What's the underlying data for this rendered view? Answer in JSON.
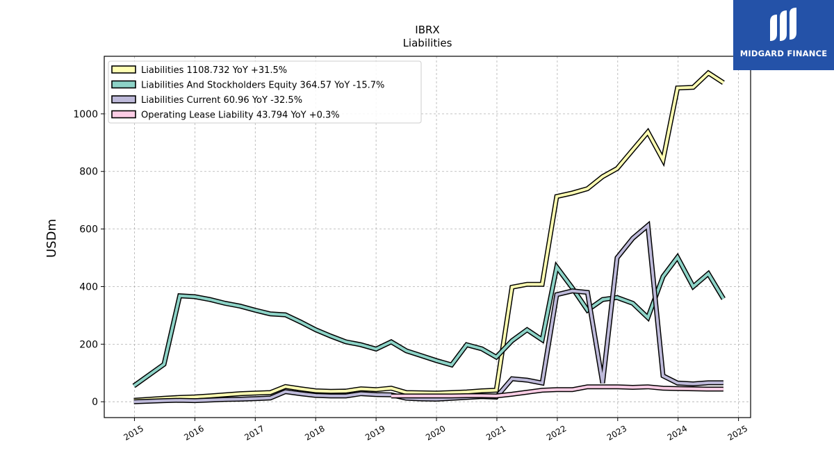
{
  "chart_data": {
    "type": "line",
    "title": "IBRX",
    "subtitle": "Liabilities",
    "xlabel": "",
    "ylabel": "USDm",
    "xlim": [
      2014.5,
      2025.2
    ],
    "ylim": [
      -55,
      1200
    ],
    "x_ticks": [
      2015,
      2016,
      2017,
      2018,
      2019,
      2020,
      2021,
      2022,
      2023,
      2024,
      2025
    ],
    "x_tick_labels": [
      "2015",
      "2016",
      "2017",
      "2018",
      "2019",
      "2020",
      "2021",
      "2022",
      "2023",
      "2024",
      "2025"
    ],
    "y_ticks": [
      0,
      200,
      400,
      600,
      800,
      1000
    ],
    "y_tick_labels": [
      "0",
      "200",
      "400",
      "600",
      "800",
      "1000"
    ],
    "grid": true,
    "legend_position": "top-left",
    "series": [
      {
        "name": "Liabilities",
        "legend_label": "Liabilities  1108.732 YoY +31.5%",
        "color": "#ffffb3",
        "points": [
          [
            2014.99,
            5
          ],
          [
            2015.49,
            12
          ],
          [
            2015.75,
            15
          ],
          [
            2016.0,
            17
          ],
          [
            2016.25,
            20
          ],
          [
            2016.5,
            24
          ],
          [
            2016.75,
            28
          ],
          [
            2017.0,
            30
          ],
          [
            2017.25,
            32
          ],
          [
            2017.5,
            53
          ],
          [
            2017.75,
            45
          ],
          [
            2018.0,
            38
          ],
          [
            2018.25,
            36
          ],
          [
            2018.5,
            37
          ],
          [
            2018.75,
            45
          ],
          [
            2019.0,
            42
          ],
          [
            2019.25,
            47
          ],
          [
            2019.5,
            32
          ],
          [
            2019.75,
            31
          ],
          [
            2020.0,
            30
          ],
          [
            2020.25,
            32
          ],
          [
            2020.5,
            34
          ],
          [
            2020.75,
            38
          ],
          [
            2020.99,
            40
          ],
          [
            2021.25,
            398
          ],
          [
            2021.5,
            408
          ],
          [
            2021.75,
            408
          ],
          [
            2021.99,
            713
          ],
          [
            2022.25,
            725
          ],
          [
            2022.5,
            740
          ],
          [
            2022.75,
            782
          ],
          [
            2022.99,
            810
          ],
          [
            2023.25,
            875
          ],
          [
            2023.5,
            937
          ],
          [
            2023.75,
            840
          ],
          [
            2023.99,
            1090
          ],
          [
            2024.25,
            1092
          ],
          [
            2024.5,
            1142
          ],
          [
            2024.75,
            1108
          ]
        ]
      },
      {
        "name": "Liabilities And Stockholders Equity",
        "legend_label": "Liabilities And Stockholders Equity  364.57 YoY -15.7%",
        "color": "#8dd3c7",
        "points": [
          [
            2014.99,
            55
          ],
          [
            2015.49,
            130
          ],
          [
            2015.75,
            368
          ],
          [
            2016.0,
            365
          ],
          [
            2016.25,
            355
          ],
          [
            2016.5,
            342
          ],
          [
            2016.75,
            332
          ],
          [
            2017.0,
            318
          ],
          [
            2017.25,
            305
          ],
          [
            2017.5,
            302
          ],
          [
            2017.75,
            277
          ],
          [
            2018.0,
            250
          ],
          [
            2018.25,
            228
          ],
          [
            2018.5,
            208
          ],
          [
            2018.75,
            198
          ],
          [
            2019.0,
            183
          ],
          [
            2019.25,
            208
          ],
          [
            2019.5,
            177
          ],
          [
            2019.75,
            160
          ],
          [
            2020.0,
            143
          ],
          [
            2020.25,
            128
          ],
          [
            2020.5,
            198
          ],
          [
            2020.75,
            184
          ],
          [
            2020.99,
            155
          ],
          [
            2021.25,
            212
          ],
          [
            2021.5,
            250
          ],
          [
            2021.75,
            215
          ],
          [
            2021.99,
            468
          ],
          [
            2022.25,
            395
          ],
          [
            2022.5,
            318
          ],
          [
            2022.75,
            355
          ],
          [
            2022.99,
            362
          ],
          [
            2023.25,
            342
          ],
          [
            2023.5,
            292
          ],
          [
            2023.75,
            435
          ],
          [
            2023.99,
            502
          ],
          [
            2024.25,
            400
          ],
          [
            2024.5,
            445
          ],
          [
            2024.75,
            358
          ]
        ]
      },
      {
        "name": "Liabilities Current",
        "legend_label": "Liabilities Current  60.96 YoY -32.5%",
        "color": "#bebada",
        "points": [
          [
            2014.99,
            0
          ],
          [
            2015.49,
            4
          ],
          [
            2015.75,
            5
          ],
          [
            2016.0,
            4
          ],
          [
            2016.25,
            6
          ],
          [
            2016.5,
            8
          ],
          [
            2016.75,
            9
          ],
          [
            2017.0,
            11
          ],
          [
            2017.25,
            13
          ],
          [
            2017.5,
            35
          ],
          [
            2017.75,
            28
          ],
          [
            2018.0,
            22
          ],
          [
            2018.25,
            20
          ],
          [
            2018.5,
            20
          ],
          [
            2018.75,
            28
          ],
          [
            2019.0,
            25
          ],
          [
            2019.25,
            24
          ],
          [
            2019.5,
            12
          ],
          [
            2019.75,
            10
          ],
          [
            2020.0,
            9
          ],
          [
            2020.25,
            12
          ],
          [
            2020.5,
            15
          ],
          [
            2020.75,
            18
          ],
          [
            2020.99,
            16
          ],
          [
            2021.25,
            80
          ],
          [
            2021.5,
            75
          ],
          [
            2021.75,
            65
          ],
          [
            2021.99,
            372
          ],
          [
            2022.25,
            385
          ],
          [
            2022.5,
            380
          ],
          [
            2022.75,
            65
          ],
          [
            2022.99,
            500
          ],
          [
            2023.25,
            568
          ],
          [
            2023.5,
            612
          ],
          [
            2023.75,
            90
          ],
          [
            2023.99,
            65
          ],
          [
            2024.25,
            62
          ],
          [
            2024.5,
            66
          ],
          [
            2024.75,
            66
          ]
        ]
      },
      {
        "name": "Operating Lease Liability",
        "legend_label": "Operating Lease Liability  43.794 YoY +0.3%",
        "color": "#fccde5",
        "points": [
          [
            2019.25,
            20
          ],
          [
            2019.5,
            20
          ],
          [
            2019.75,
            20
          ],
          [
            2020.0,
            20
          ],
          [
            2020.25,
            20
          ],
          [
            2020.5,
            21
          ],
          [
            2020.75,
            21
          ],
          [
            2020.99,
            20
          ],
          [
            2021.25,
            26
          ],
          [
            2021.5,
            33
          ],
          [
            2021.75,
            40
          ],
          [
            2021.99,
            42
          ],
          [
            2022.25,
            42
          ],
          [
            2022.5,
            52
          ],
          [
            2022.75,
            52
          ],
          [
            2022.99,
            52
          ],
          [
            2023.25,
            50
          ],
          [
            2023.5,
            52
          ],
          [
            2023.75,
            47
          ],
          [
            2023.99,
            46
          ],
          [
            2024.25,
            45
          ],
          [
            2024.5,
            44
          ],
          [
            2024.75,
            44
          ]
        ]
      }
    ]
  },
  "logo": {
    "text": "MIDGARD FINANCE",
    "color": "#2452a8"
  }
}
